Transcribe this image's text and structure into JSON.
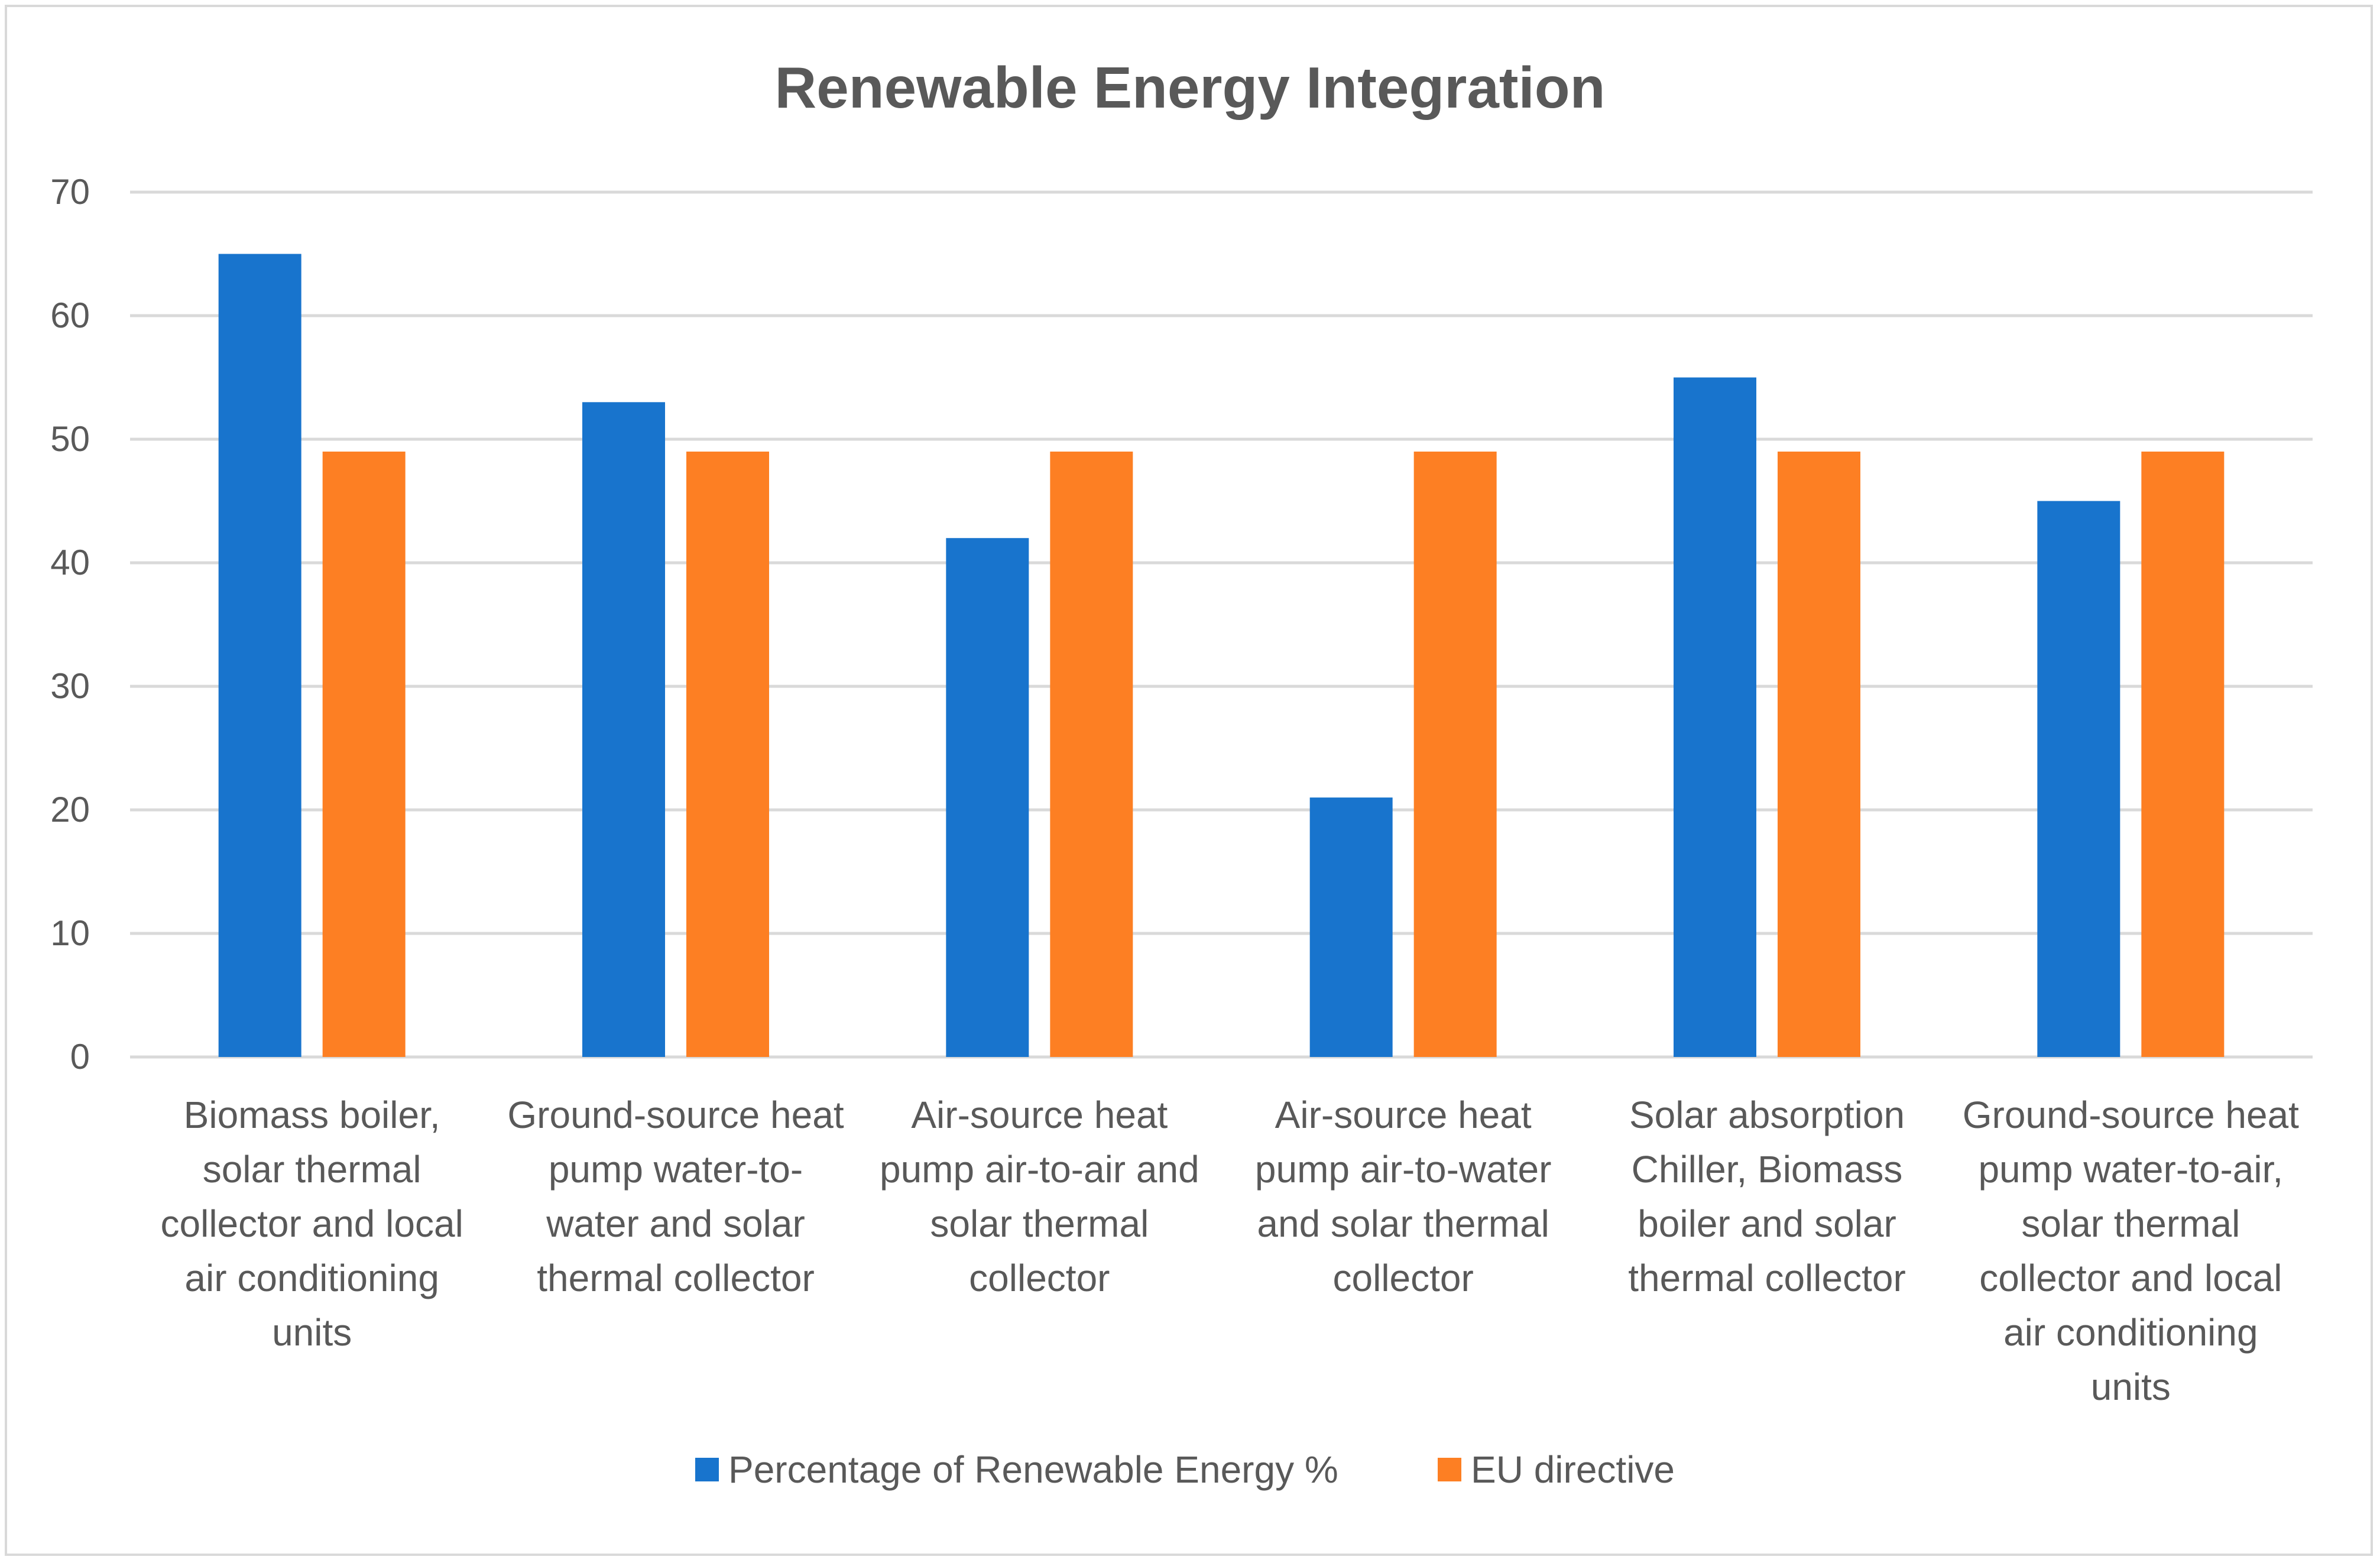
{
  "chart_data": {
    "type": "bar",
    "title": "Renewable Energy Integration",
    "xlabel": "",
    "ylabel": "",
    "ylim": [
      0,
      70
    ],
    "yticks": [
      0,
      10,
      20,
      30,
      40,
      50,
      60,
      70
    ],
    "grid": true,
    "legend_position": "bottom",
    "categories": [
      [
        "Biomass boiler,",
        "solar thermal",
        "collector and local",
        "air conditioning",
        "units"
      ],
      [
        "Ground-source heat",
        "pump water-to-",
        "water and solar",
        "thermal collector"
      ],
      [
        "Air-source heat",
        "pump air-to-air and",
        "solar thermal",
        "collector"
      ],
      [
        "Air-source heat",
        "pump air-to-water",
        "and solar thermal",
        "collector"
      ],
      [
        "Solar absorption",
        "Chiller, Biomass",
        "boiler and solar",
        "thermal collector"
      ],
      [
        "Ground-source heat",
        "pump water-to-air,",
        "solar thermal",
        "collector and local",
        "air conditioning",
        "units"
      ]
    ],
    "series": [
      {
        "name": "Percentage of Renewable Energy %",
        "color": "#1874cd",
        "values": [
          65,
          53,
          42,
          21,
          55,
          45
        ]
      },
      {
        "name": "EU directive",
        "color": "#fd7f23",
        "values": [
          49,
          49,
          49,
          49,
          49,
          49
        ]
      }
    ]
  }
}
